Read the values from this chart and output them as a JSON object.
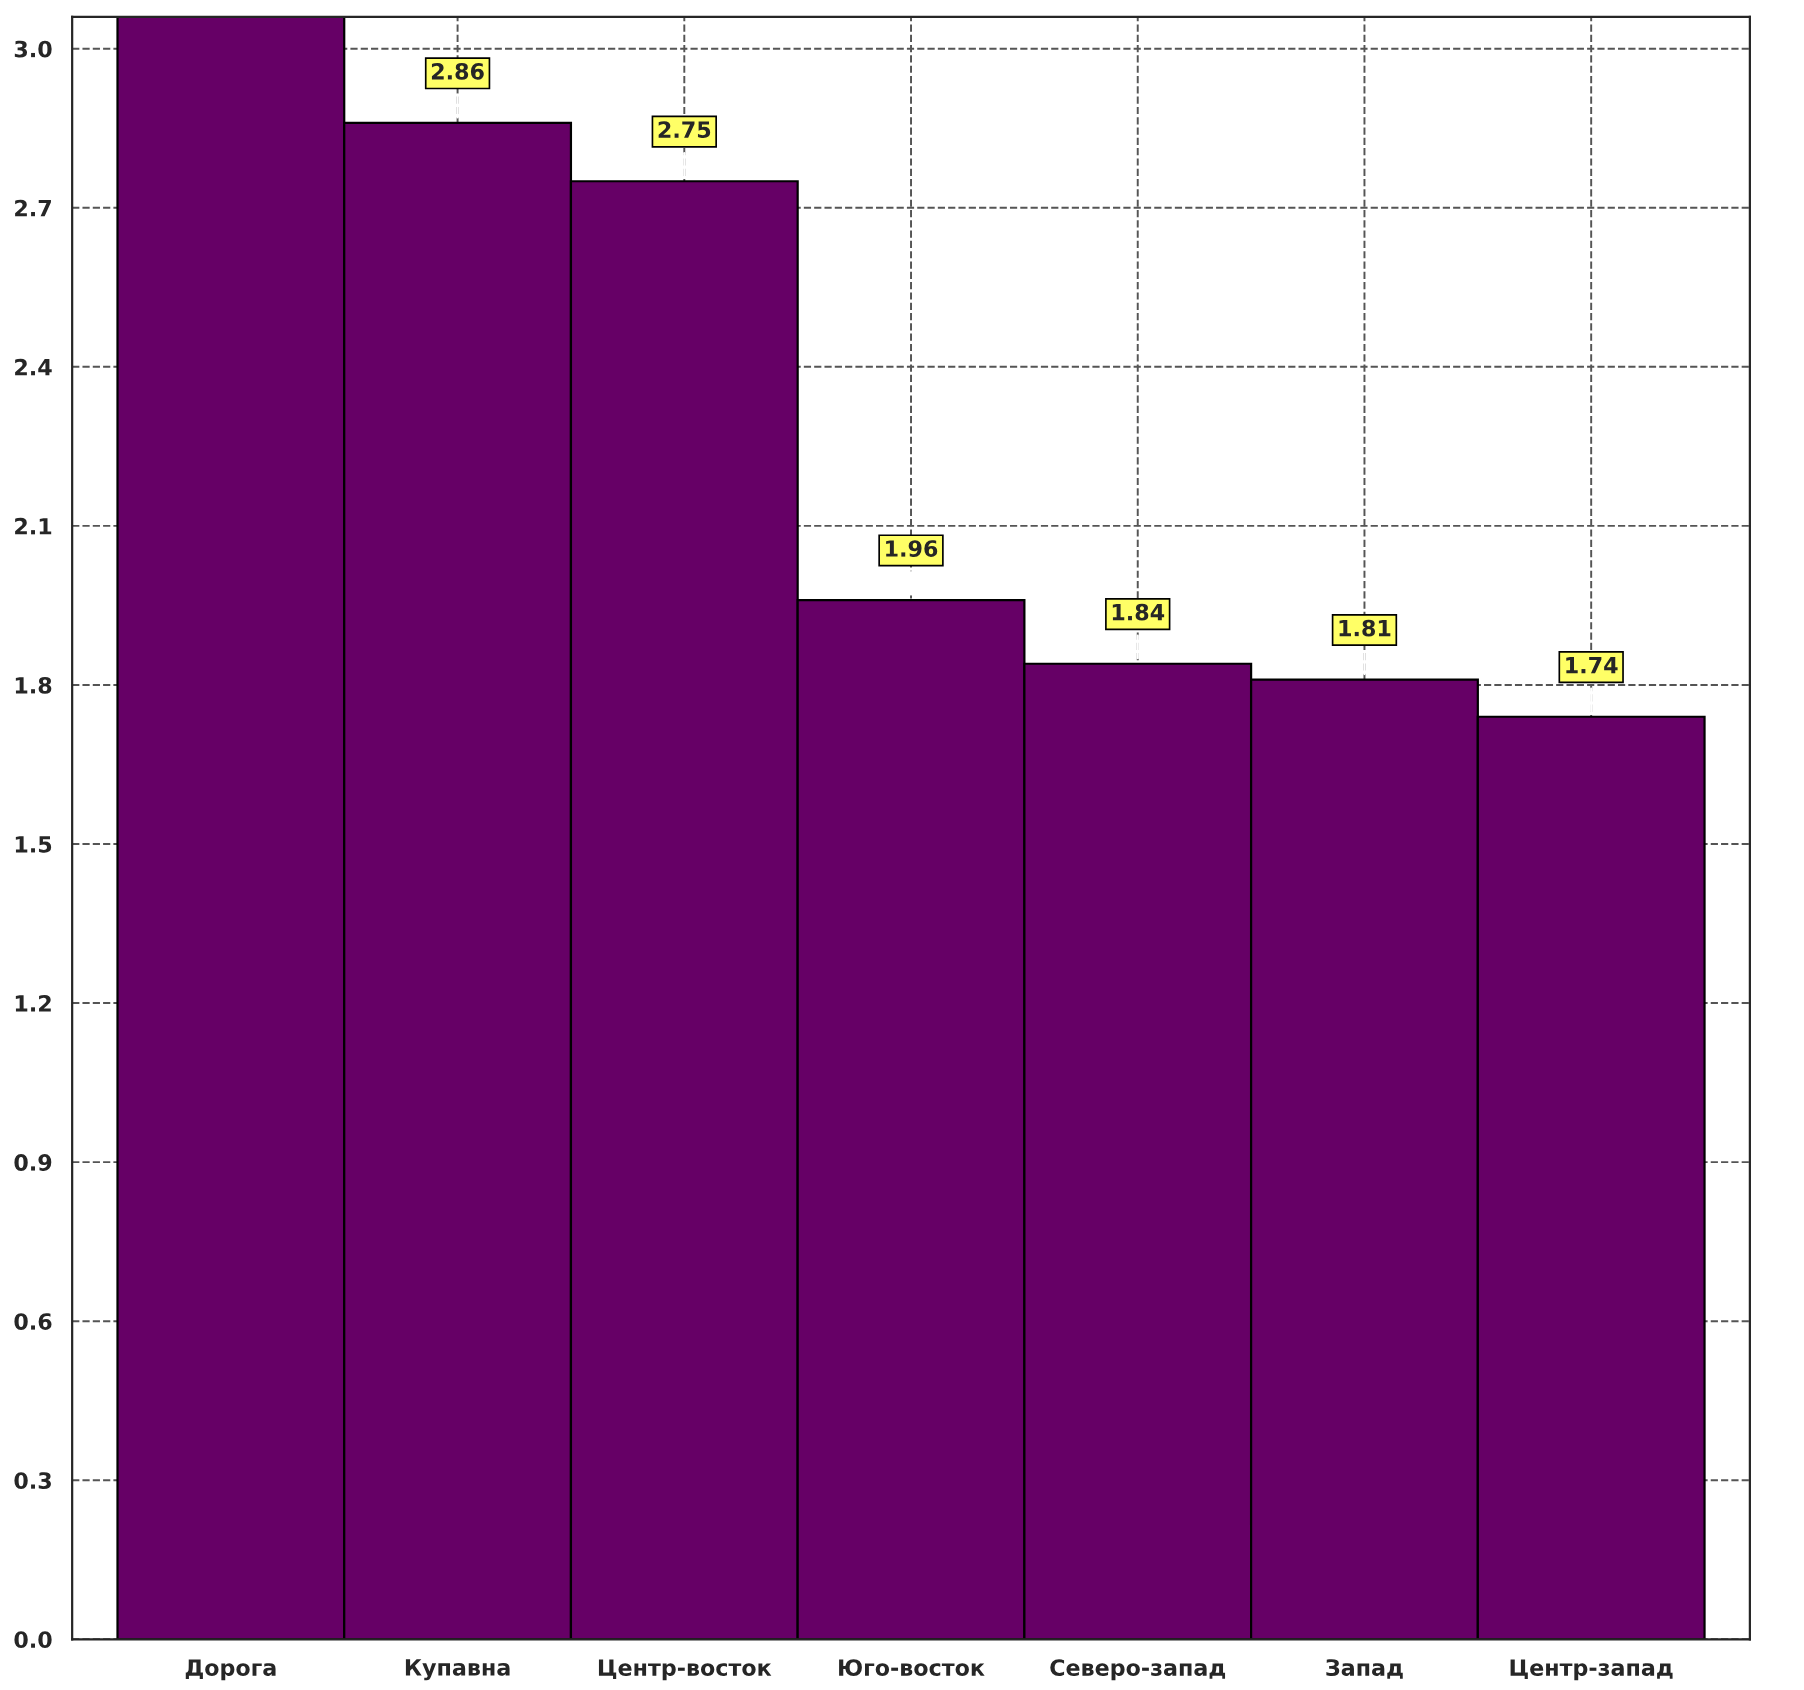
{
  "chart_data": {
    "type": "bar",
    "categories": [
      "Дорога",
      "Купавна",
      "Центр-восток",
      "Юго-восток",
      "Северо-запад",
      "Запад",
      "Центр-запад"
    ],
    "values": [
      3.06,
      2.86,
      2.75,
      1.96,
      1.84,
      1.81,
      1.74
    ],
    "value_labels": [
      null,
      "2.86",
      "2.75",
      "1.96",
      "1.84",
      "1.81",
      "1.74"
    ],
    "color": "#660066",
    "ylim": [
      0,
      3.06
    ],
    "yticks": [
      {
        "value": 0,
        "label": "0.0"
      },
      0.3,
      0.6,
      0.9,
      1.2,
      1.5,
      1.8,
      2.1,
      2.4,
      2.7,
      {
        "value": 3,
        "label": "3.0"
      }
    ],
    "grid": true,
    "legend": false
  }
}
